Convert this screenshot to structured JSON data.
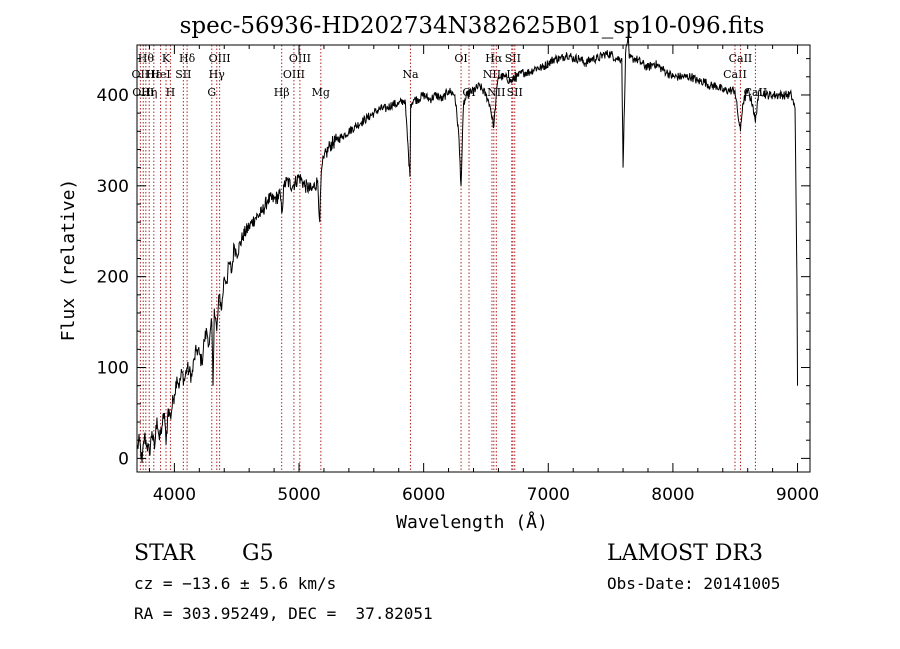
{
  "chart_data": {
    "type": "line",
    "title": "spec-56936-HD202734N382625B01_sp10-096.fits",
    "xlabel": "Wavelength (Å)",
    "ylabel": "Flux (relative)",
    "xlim": [
      3700,
      9100
    ],
    "ylim": [
      -15,
      455
    ],
    "xticks": [
      4000,
      5000,
      6000,
      7000,
      8000,
      9000
    ],
    "yticks": [
      0,
      100,
      200,
      300,
      400
    ],
    "grid": false,
    "legend": "none",
    "line_color": "#000000",
    "marker_color": "#b22222",
    "series": [
      {
        "x": [
          3700,
          3720,
          3740,
          3760,
          3780,
          3800,
          3820,
          3840,
          3860,
          3880,
          3900,
          3920,
          3933,
          3950,
          3968,
          3990,
          4000,
          4020,
          4040,
          4060,
          4080,
          4100,
          4120,
          4140,
          4160,
          4180,
          4200,
          4220,
          4240,
          4260,
          4280,
          4300,
          4310,
          4320,
          4340,
          4360,
          4380,
          4400,
          4420,
          4440,
          4460,
          4480,
          4500,
          4550,
          4600,
          4650,
          4700,
          4750,
          4800,
          4850,
          4861,
          4880,
          4900,
          4950,
          5000,
          5050,
          5100,
          5150,
          5167,
          5175,
          5183,
          5200,
          5250,
          5300,
          5350,
          5400,
          5450,
          5500,
          5550,
          5600,
          5650,
          5700,
          5750,
          5800,
          5850,
          5890,
          5896,
          5920,
          5950,
          6000,
          6050,
          6100,
          6150,
          6200,
          6250,
          6280,
          6300,
          6320,
          6350,
          6400,
          6450,
          6500,
          6530,
          6563,
          6580,
          6600,
          6650,
          6700,
          6750,
          6800,
          6850,
          6900,
          6950,
          7000,
          7050,
          7100,
          7150,
          7200,
          7250,
          7300,
          7350,
          7400,
          7450,
          7500,
          7550,
          7590,
          7600,
          7620,
          7640,
          7650,
          7700,
          7750,
          7800,
          7850,
          7900,
          7950,
          8000,
          8050,
          8100,
          8150,
          8200,
          8250,
          8300,
          8350,
          8400,
          8450,
          8498,
          8520,
          8542,
          8560,
          8600,
          8640,
          8662,
          8680,
          8700,
          8750,
          8800,
          8850,
          8900,
          8950,
          8980,
          8995,
          9000
        ],
        "y": [
          10,
          20,
          -5,
          25,
          15,
          5,
          30,
          10,
          45,
          20,
          35,
          50,
          15,
          55,
          45,
          65,
          70,
          90,
          80,
          95,
          85,
          100,
          95,
          90,
          110,
          120,
          115,
          105,
          130,
          140,
          125,
          150,
          80,
          165,
          140,
          180,
          165,
          200,
          195,
          215,
          205,
          235,
          225,
          245,
          255,
          265,
          270,
          285,
          285,
          290,
          270,
          300,
          305,
          300,
          310,
          300,
          295,
          305,
          260,
          300,
          320,
          330,
          345,
          350,
          355,
          360,
          365,
          370,
          375,
          380,
          385,
          385,
          390,
          390,
          395,
          310,
          390,
          395,
          395,
          400,
          395,
          400,
          395,
          405,
          400,
          360,
          300,
          390,
          400,
          405,
          410,
          400,
          390,
          365,
          395,
          420,
          420,
          415,
          420,
          425,
          425,
          430,
          430,
          435,
          440,
          440,
          445,
          440,
          440,
          435,
          440,
          440,
          445,
          445,
          440,
          440,
          320,
          445,
          465,
          440,
          440,
          435,
          430,
          435,
          430,
          425,
          420,
          420,
          420,
          420,
          415,
          415,
          410,
          410,
          405,
          405,
          405,
          380,
          360,
          390,
          405,
          390,
          370,
          395,
          405,
          400,
          400,
          400,
          400,
          400,
          385,
          200,
          80
        ]
      }
    ],
    "line_markers": [
      {
        "x": 3727,
        "label": "OII",
        "row": 2
      },
      {
        "x": 3750,
        "label": "OIII",
        "row": 3
      },
      {
        "x": 3771,
        "label": "Hθ",
        "row": 1
      },
      {
        "x": 3798,
        "label": "Hη",
        "row": 3
      },
      {
        "x": 3835,
        "label": "Hε",
        "row": 2
      },
      {
        "x": 3889,
        "label": "HeI",
        "row": 2
      },
      {
        "x": 3933,
        "label": "K",
        "row": 1
      },
      {
        "x": 3968,
        "label": "H",
        "row": 3
      },
      {
        "x": 4072,
        "label": "SII",
        "row": 2
      },
      {
        "x": 4102,
        "label": "Hδ",
        "row": 1
      },
      {
        "x": 4300,
        "label": "G",
        "row": 3
      },
      {
        "x": 4340,
        "label": "Hγ",
        "row": 2
      },
      {
        "x": 4363,
        "label": "OIII",
        "row": 1
      },
      {
        "x": 4861,
        "label": "Hβ",
        "row": 3
      },
      {
        "x": 4959,
        "label": "OIII",
        "row": 2
      },
      {
        "x": 5007,
        "label": "OIII",
        "row": 1
      },
      {
        "x": 5175,
        "label": "Mg",
        "row": 3
      },
      {
        "x": 5894,
        "label": "Na",
        "row": 2
      },
      {
        "x": 6300,
        "label": "OI",
        "row": 1
      },
      {
        "x": 6364,
        "label": "OI",
        "row": 3
      },
      {
        "x": 6548,
        "label": "NII",
        "row": 2
      },
      {
        "x": 6563,
        "label": "Hα",
        "row": 1
      },
      {
        "x": 6583,
        "label": "NII",
        "row": 3
      },
      {
        "x": 6707,
        "label": "Li",
        "row": 2
      },
      {
        "x": 6716,
        "label": "SII",
        "row": 1
      },
      {
        "x": 6731,
        "label": "SII",
        "row": 3
      },
      {
        "x": 8498,
        "label": "CaII",
        "row": 2
      },
      {
        "x": 8542,
        "label": "CaII",
        "row": 1
      },
      {
        "x": 8662,
        "label": "CaII",
        "row": 3
      }
    ]
  },
  "info": {
    "object_class": "STAR",
    "subclass": "G5",
    "survey": "LAMOST DR3",
    "redshift_line": "cz = −13.6 ± 5.6 km/s",
    "obs_date_line": "Obs-Date: 20141005",
    "coords_line": "RA = 303.95249, DEC =  37.82051"
  }
}
